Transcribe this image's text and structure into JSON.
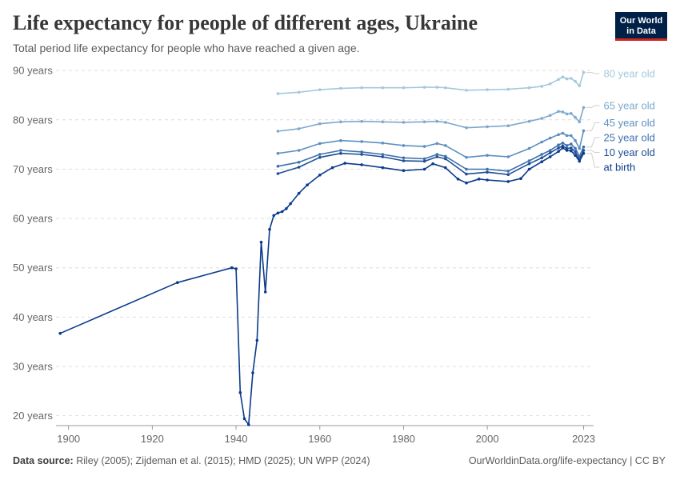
{
  "header": {
    "title": "Life expectancy for people of different ages, Ukraine",
    "subtitle": "Total period life expectancy for people who have reached a given age.",
    "logo_line1": "Our World",
    "logo_line2": "in Data"
  },
  "footer": {
    "source_label": "Data source:",
    "source_text": "Riley (2005); Zijdeman et al. (2015); HMD (2025); UN WPP (2024)",
    "url": "OurWorldinData.org/life-expectancy | CC BY"
  },
  "chart_data": {
    "type": "line",
    "title": "Life expectancy for people of different ages, Ukraine",
    "xlabel": "",
    "ylabel": "",
    "xlim": [
      1897,
      2025
    ],
    "ylim": [
      18,
      91
    ],
    "grid": "horizontal dashed",
    "x_ticks": [
      {
        "value": 1900,
        "label": "1900"
      },
      {
        "value": 1920,
        "label": "1920"
      },
      {
        "value": 1940,
        "label": "1940"
      },
      {
        "value": 1960,
        "label": "1960"
      },
      {
        "value": 1980,
        "label": "1980"
      },
      {
        "value": 2000,
        "label": "2000"
      },
      {
        "value": 2023,
        "label": "2023"
      }
    ],
    "y_ticks": [
      {
        "value": 20,
        "label": "20 years"
      },
      {
        "value": 30,
        "label": "30 years"
      },
      {
        "value": 40,
        "label": "40 years"
      },
      {
        "value": 50,
        "label": "50 years"
      },
      {
        "value": 60,
        "label": "60 years"
      },
      {
        "value": 70,
        "label": "70 years"
      },
      {
        "value": 80,
        "label": "80 years"
      },
      {
        "value": 90,
        "label": "90 years"
      }
    ],
    "series": [
      {
        "name": "80 year old",
        "color": "#a4c8dc",
        "label_y": 89.4,
        "x": [
          1950,
          1955,
          1960,
          1965,
          1970,
          1975,
          1980,
          1985,
          1988,
          1990,
          1995,
          2000,
          2005,
          2010,
          2013,
          2015,
          2017,
          2018,
          2019,
          2020,
          2021,
          2022,
          2023
        ],
        "y": [
          85.3,
          85.6,
          86.1,
          86.4,
          86.5,
          86.5,
          86.5,
          86.6,
          86.6,
          86.5,
          86.0,
          86.1,
          86.2,
          86.5,
          86.8,
          87.3,
          88.2,
          88.7,
          88.3,
          88.4,
          87.8,
          86.9,
          89.6
        ]
      },
      {
        "name": "65 year old",
        "color": "#7ea8cc",
        "label_y": 82.9,
        "x": [
          1950,
          1955,
          1960,
          1965,
          1970,
          1975,
          1980,
          1985,
          1988,
          1990,
          1995,
          2000,
          2005,
          2010,
          2013,
          2015,
          2017,
          2018,
          2019,
          2020,
          2021,
          2022,
          2023
        ],
        "y": [
          77.7,
          78.2,
          79.2,
          79.6,
          79.7,
          79.6,
          79.5,
          79.6,
          79.7,
          79.5,
          78.4,
          78.6,
          78.8,
          79.7,
          80.3,
          80.9,
          81.7,
          81.6,
          81.2,
          81.3,
          80.5,
          79.6,
          82.5
        ]
      },
      {
        "name": "45 year old",
        "color": "#5d8fc0",
        "label_y": 79.4,
        "x": [
          1950,
          1955,
          1960,
          1965,
          1970,
          1975,
          1980,
          1985,
          1988,
          1990,
          1995,
          2000,
          2005,
          2010,
          2013,
          2015,
          2017,
          2018,
          2019,
          2020,
          2021,
          2022,
          2023
        ],
        "y": [
          73.2,
          73.8,
          75.2,
          75.8,
          75.6,
          75.3,
          74.8,
          74.6,
          75.2,
          74.8,
          72.4,
          72.8,
          72.5,
          74.2,
          75.5,
          76.3,
          77.0,
          77.3,
          76.8,
          76.8,
          75.8,
          74.2,
          77.8
        ]
      },
      {
        "name": "25 year old",
        "color": "#3e70ad",
        "label_y": 76.4,
        "x": [
          1950,
          1955,
          1960,
          1965,
          1970,
          1975,
          1980,
          1985,
          1988,
          1990,
          1995,
          2000,
          2005,
          2010,
          2013,
          2015,
          2017,
          2018,
          2019,
          2020,
          2021,
          2022,
          2023
        ],
        "y": [
          70.6,
          71.4,
          73.0,
          73.8,
          73.5,
          73.0,
          72.3,
          72.1,
          73.0,
          72.6,
          70.0,
          70.0,
          69.6,
          71.7,
          73.0,
          73.8,
          74.9,
          75.3,
          74.8,
          75.1,
          74.2,
          72.6,
          74.5
        ]
      },
      {
        "name": "10 year old",
        "color": "#1f4f94",
        "label_y": 73.4,
        "x": [
          1950,
          1955,
          1960,
          1965,
          1970,
          1975,
          1980,
          1985,
          1988,
          1990,
          1995,
          2000,
          2005,
          2010,
          2013,
          2015,
          2017,
          2018,
          2019,
          2020,
          2021,
          2022,
          2023
        ],
        "y": [
          69.1,
          70.4,
          72.4,
          73.2,
          73.0,
          72.5,
          71.7,
          71.6,
          72.5,
          72.1,
          69.0,
          69.4,
          68.9,
          71.1,
          72.3,
          73.3,
          74.3,
          74.7,
          74.2,
          74.3,
          73.5,
          71.9,
          73.8
        ]
      },
      {
        "name": "at birth",
        "color": "#0b3b8c",
        "label_y": 70.4,
        "x": [
          1898,
          1926,
          1939,
          1940,
          1941,
          1942,
          1943,
          1944,
          1945,
          1946,
          1947,
          1948,
          1949,
          1950,
          1951,
          1952,
          1953,
          1955,
          1957,
          1960,
          1963,
          1966,
          1970,
          1975,
          1980,
          1985,
          1987,
          1990,
          1993,
          1995,
          1998,
          2000,
          2005,
          2008,
          2010,
          2013,
          2015,
          2017,
          2018,
          2019,
          2020,
          2021,
          2022,
          2023
        ],
        "y": [
          36.7,
          47.0,
          50.0,
          49.8,
          24.7,
          19.4,
          18.2,
          28.7,
          35.3,
          55.2,
          45.1,
          57.8,
          60.6,
          61.1,
          61.4,
          62.0,
          63.0,
          65.1,
          66.8,
          68.8,
          70.3,
          71.2,
          70.9,
          70.3,
          69.7,
          70.0,
          71.1,
          70.3,
          68.0,
          67.2,
          68.0,
          67.8,
          67.5,
          68.1,
          70.0,
          71.5,
          72.5,
          73.6,
          74.3,
          73.8,
          73.7,
          72.8,
          71.6,
          73.2
        ]
      }
    ]
  }
}
